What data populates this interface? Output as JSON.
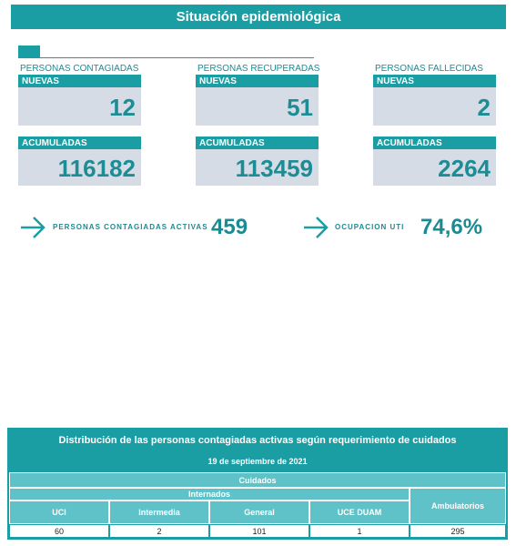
{
  "header": {
    "title": "Situación epidemiológica"
  },
  "stats": [
    {
      "label": "PERSONAS CONTAGIADAS",
      "new_label": "NUEVAS",
      "new": 12,
      "total_label": "ACUMULADAS",
      "total": 116182
    },
    {
      "label": "PERSONAS RECUPERADAS",
      "new_label": "NUEVAS",
      "new": 51,
      "total_label": "ACUMULADAS",
      "total": 113459
    },
    {
      "label": "PERSONAS FALLECIDAS",
      "new_label": "NUEVAS",
      "new": 2,
      "total_label": "ACUMULADAS",
      "total": 2264
    }
  ],
  "highlights": [
    {
      "label": "PERSONAS CONTAGIADAS ACTIVAS",
      "value": 459
    },
    {
      "label": "OCUPACION UTI",
      "value": "74,6%"
    }
  ],
  "table": {
    "title": "Distribución de las personas contagiadas activas según requerimiento de cuidados",
    "date": "19 de septiembre de 2021",
    "group": "Cuidados",
    "subgroup": "Internados",
    "columns": [
      "UCI",
      "Intermedia",
      "General",
      "UCE DUAM",
      "Ambulatorios"
    ],
    "rows": [
      [
        60,
        2,
        101,
        1,
        295
      ]
    ]
  }
}
